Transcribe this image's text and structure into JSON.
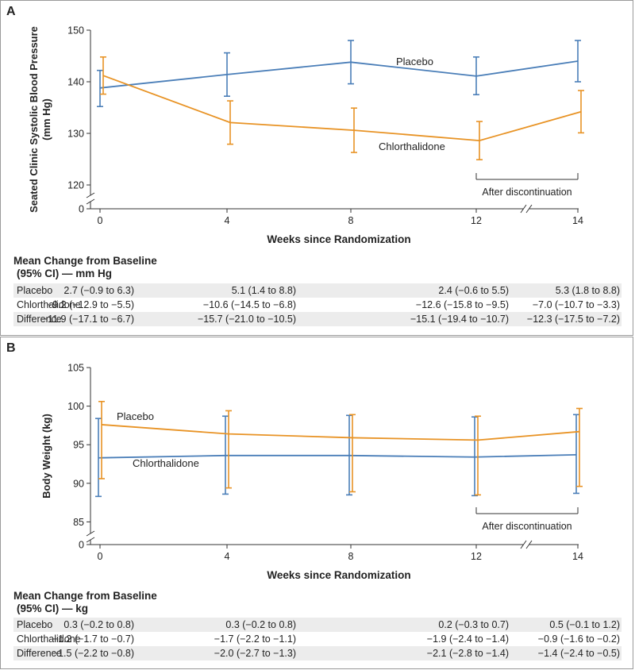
{
  "panels": [
    {
      "label": "A",
      "chart_data": {
        "type": "line",
        "x": [
          0,
          4,
          8,
          12,
          14
        ],
        "xticklabels": [
          "0",
          "4",
          "8",
          "12",
          "14"
        ],
        "xlabel": "Weeks since Randomization",
        "ylabel": "Seated Clinic Systolic Blood Pressure (mm Hg)",
        "ylabel_lines": [
          "Seated Clinic Systolic Blood Pressure",
          "(mm Hg)"
        ],
        "yticks": [
          120,
          130,
          140,
          150
        ],
        "ylim": [
          118,
          150
        ],
        "y_zero_label": "0",
        "axis_break": true,
        "series": [
          {
            "name": "Placebo",
            "color": "#4a7eb8",
            "values": [
              138.8,
              141.4,
              143.8,
              141.1,
              144.0
            ],
            "lower": [
              135.2,
              137.2,
              139.6,
              137.5,
              140.0
            ],
            "upper": [
              142.2,
              145.6,
              148.0,
              144.8,
              148.0
            ]
          },
          {
            "name": "Chlorthalidone",
            "color": "#e89325",
            "values": [
              141.2,
              132.1,
              130.6,
              128.6,
              134.2
            ],
            "lower": [
              137.6,
              127.9,
              126.3,
              124.9,
              130.1
            ],
            "upper": [
              144.8,
              136.3,
              134.9,
              132.3,
              138.3
            ]
          }
        ],
        "annotation": "After discontinuation"
      },
      "table": {
        "title_lines": [
          "Mean Change from Baseline",
          "(95% CI) — mm Hg"
        ],
        "rows": [
          {
            "label": "Placebo",
            "cells": [
              "2.7 (−0.9 to 6.3)",
              "5.1 (1.4 to 8.8)",
              "2.4 (−0.6 to 5.5)",
              "5.3 (1.8 to 8.8)"
            ]
          },
          {
            "label": "Chlorthalidone",
            "cells": [
              "−9.2 (−12.9 to −5.5)",
              "−10.6 (−14.5 to −6.8)",
              "−12.6 (−15.8 to −9.5)",
              "−7.0 (−10.7 to −3.3)"
            ]
          },
          {
            "label": "Difference",
            "cells": [
              "−11.9 (−17.1 to −6.7)",
              "−15.7 (−21.0 to −10.5)",
              "−15.1 (−19.4 to −10.7)",
              "−12.3 (−17.5 to −7.2)"
            ]
          }
        ]
      }
    },
    {
      "label": "B",
      "chart_data": {
        "type": "line",
        "x": [
          0,
          4,
          8,
          12,
          14
        ],
        "xticklabels": [
          "0",
          "4",
          "8",
          "12",
          "14"
        ],
        "xlabel": "Weeks since Randomization",
        "ylabel": "Body Weight (kg)",
        "ylabel_lines": [
          "Body Weight (kg)"
        ],
        "yticks": [
          85,
          90,
          95,
          100,
          105
        ],
        "ylim": [
          83.5,
          105
        ],
        "y_zero_label": "0",
        "axis_break": true,
        "series": [
          {
            "name": "Placebo",
            "color": "#4a7eb8",
            "values": [
              93.3,
              93.6,
              93.6,
              93.4,
              93.7
            ],
            "lower": [
              88.3,
              88.6,
              88.5,
              88.4,
              88.7
            ],
            "upper": [
              98.4,
              98.7,
              98.8,
              98.6,
              98.9
            ]
          },
          {
            "name": "Chlorthalidone",
            "color": "#e89325",
            "values": [
              97.6,
              96.4,
              95.9,
              95.6,
              96.7
            ],
            "lower": [
              90.6,
              89.4,
              88.9,
              88.5,
              89.6
            ],
            "upper": [
              100.6,
              99.4,
              98.9,
              98.7,
              99.7
            ]
          }
        ],
        "annotation": "After discontinuation"
      },
      "table": {
        "title_lines": [
          "Mean Change from Baseline",
          "(95% CI) — kg"
        ],
        "rows": [
          {
            "label": "Placebo",
            "cells": [
              "0.3 (−0.2 to 0.8)",
              "0.3 (−0.2 to 0.8)",
              "0.2 (−0.3 to 0.7)",
              "0.5 (−0.1 to 1.2)"
            ]
          },
          {
            "label": "Chlorthalidone",
            "cells": [
              "−1.2 (−1.7 to −0.7)",
              "−1.7 (−2.2 to −1.1)",
              "−1.9 (−2.4 to −1.4)",
              "−0.9 (−1.6 to −0.2)"
            ]
          },
          {
            "label": "Difference",
            "cells": [
              "−1.5 (−2.2 to −0.8)",
              "−2.0 (−2.7 to −1.3)",
              "−2.1 (−2.8 to −1.4)",
              "−1.4 (−2.4 to −0.5)"
            ]
          }
        ]
      }
    }
  ]
}
